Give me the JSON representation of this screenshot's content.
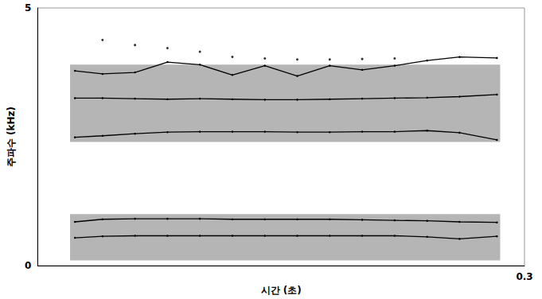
{
  "chart_data": {
    "type": "line",
    "x_label": "시간 (초)",
    "y_label": "주파수 (kHz)",
    "xlim": [
      0,
      0.3
    ],
    "xticks": [
      0.3
    ],
    "ylim": [
      0,
      5
    ],
    "yticks": [
      0,
      5
    ],
    "grid": false,
    "energy_bands": [
      {
        "t": [
          0.02,
          0.285
        ],
        "f": [
          0.1,
          1.0
        ]
      },
      {
        "t": [
          0.02,
          0.285
        ],
        "f": [
          2.4,
          3.9
        ]
      }
    ],
    "series": [
      {
        "type": "line",
        "marker": "circle",
        "color": "#000000",
        "x": [
          0.023,
          0.04,
          0.06,
          0.08,
          0.1,
          0.12,
          0.14,
          0.16,
          0.18,
          0.2,
          0.22,
          0.24,
          0.26,
          0.283
        ],
        "values": [
          0.54,
          0.57,
          0.58,
          0.58,
          0.58,
          0.58,
          0.58,
          0.58,
          0.58,
          0.58,
          0.58,
          0.56,
          0.52,
          0.57
        ]
      },
      {
        "type": "line",
        "marker": "circle",
        "color": "#000000",
        "x": [
          0.023,
          0.04,
          0.06,
          0.08,
          0.1,
          0.12,
          0.14,
          0.16,
          0.18,
          0.2,
          0.22,
          0.24,
          0.26,
          0.283
        ],
        "values": [
          0.85,
          0.9,
          0.91,
          0.91,
          0.91,
          0.9,
          0.9,
          0.9,
          0.9,
          0.89,
          0.88,
          0.87,
          0.85,
          0.84
        ]
      },
      {
        "type": "line",
        "marker": "circle",
        "color": "#000000",
        "x": [
          0.023,
          0.04,
          0.06,
          0.08,
          0.1,
          0.12,
          0.14,
          0.16,
          0.18,
          0.2,
          0.22,
          0.24,
          0.26,
          0.283
        ],
        "values": [
          2.49,
          2.52,
          2.56,
          2.59,
          2.6,
          2.6,
          2.6,
          2.59,
          2.59,
          2.6,
          2.6,
          2.62,
          2.58,
          2.44
        ]
      },
      {
        "type": "line",
        "marker": "circle",
        "color": "#000000",
        "x": [
          0.023,
          0.04,
          0.06,
          0.08,
          0.1,
          0.12,
          0.14,
          0.16,
          0.18,
          0.2,
          0.22,
          0.24,
          0.26,
          0.283
        ],
        "values": [
          3.25,
          3.25,
          3.24,
          3.23,
          3.24,
          3.23,
          3.22,
          3.22,
          3.23,
          3.24,
          3.25,
          3.26,
          3.28,
          3.32
        ]
      },
      {
        "type": "line",
        "marker": "circle",
        "color": "#000000",
        "x": [
          0.023,
          0.04,
          0.06,
          0.08,
          0.1,
          0.12,
          0.14,
          0.16,
          0.18,
          0.2,
          0.22,
          0.24,
          0.26,
          0.283
        ],
        "values": [
          3.78,
          3.72,
          3.75,
          3.95,
          3.9,
          3.7,
          3.88,
          3.68,
          3.88,
          3.8,
          3.88,
          3.98,
          4.05,
          4.03
        ]
      },
      {
        "type": "scatter",
        "marker": "circle",
        "color": "#000000",
        "x": [
          0.04,
          0.06,
          0.08,
          0.1,
          0.12,
          0.14,
          0.16,
          0.18,
          0.2,
          0.22
        ],
        "values": [
          4.38,
          4.28,
          4.22,
          4.15,
          4.05,
          4.02,
          4.0,
          4.0,
          4.01,
          4.02
        ]
      }
    ]
  }
}
